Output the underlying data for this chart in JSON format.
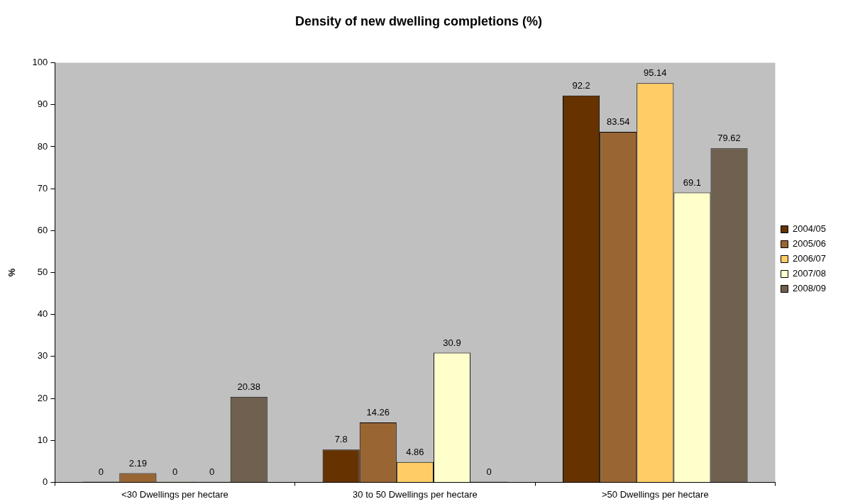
{
  "chart_data": {
    "type": "bar",
    "title": "Density of new dwelling completions (%)",
    "ylabel": "%",
    "categories": [
      "<30 Dwellings per hectare",
      "30 to 50 Dwellings per hectare",
      ">50 Dwellings per hectare"
    ],
    "series": [
      {
        "name": "2004/05",
        "color": "#663300",
        "values": [
          0,
          7.8,
          92.2
        ]
      },
      {
        "name": "2005/06",
        "color": "#996633",
        "values": [
          2.19,
          14.26,
          83.54
        ]
      },
      {
        "name": "2006/07",
        "color": "#ffcc66",
        "values": [
          0,
          4.86,
          95.14
        ]
      },
      {
        "name": "2007/08",
        "color": "#ffffcc",
        "values": [
          0,
          30.9,
          69.1
        ]
      },
      {
        "name": "2008/09",
        "color": "#6f604f",
        "values": [
          20.38,
          0,
          79.62
        ]
      }
    ],
    "ylim": [
      0,
      100
    ],
    "yticks": [
      0,
      10,
      20,
      30,
      40,
      50,
      60,
      70,
      80,
      90,
      100
    ],
    "data_labels": true,
    "legend": "right"
  }
}
